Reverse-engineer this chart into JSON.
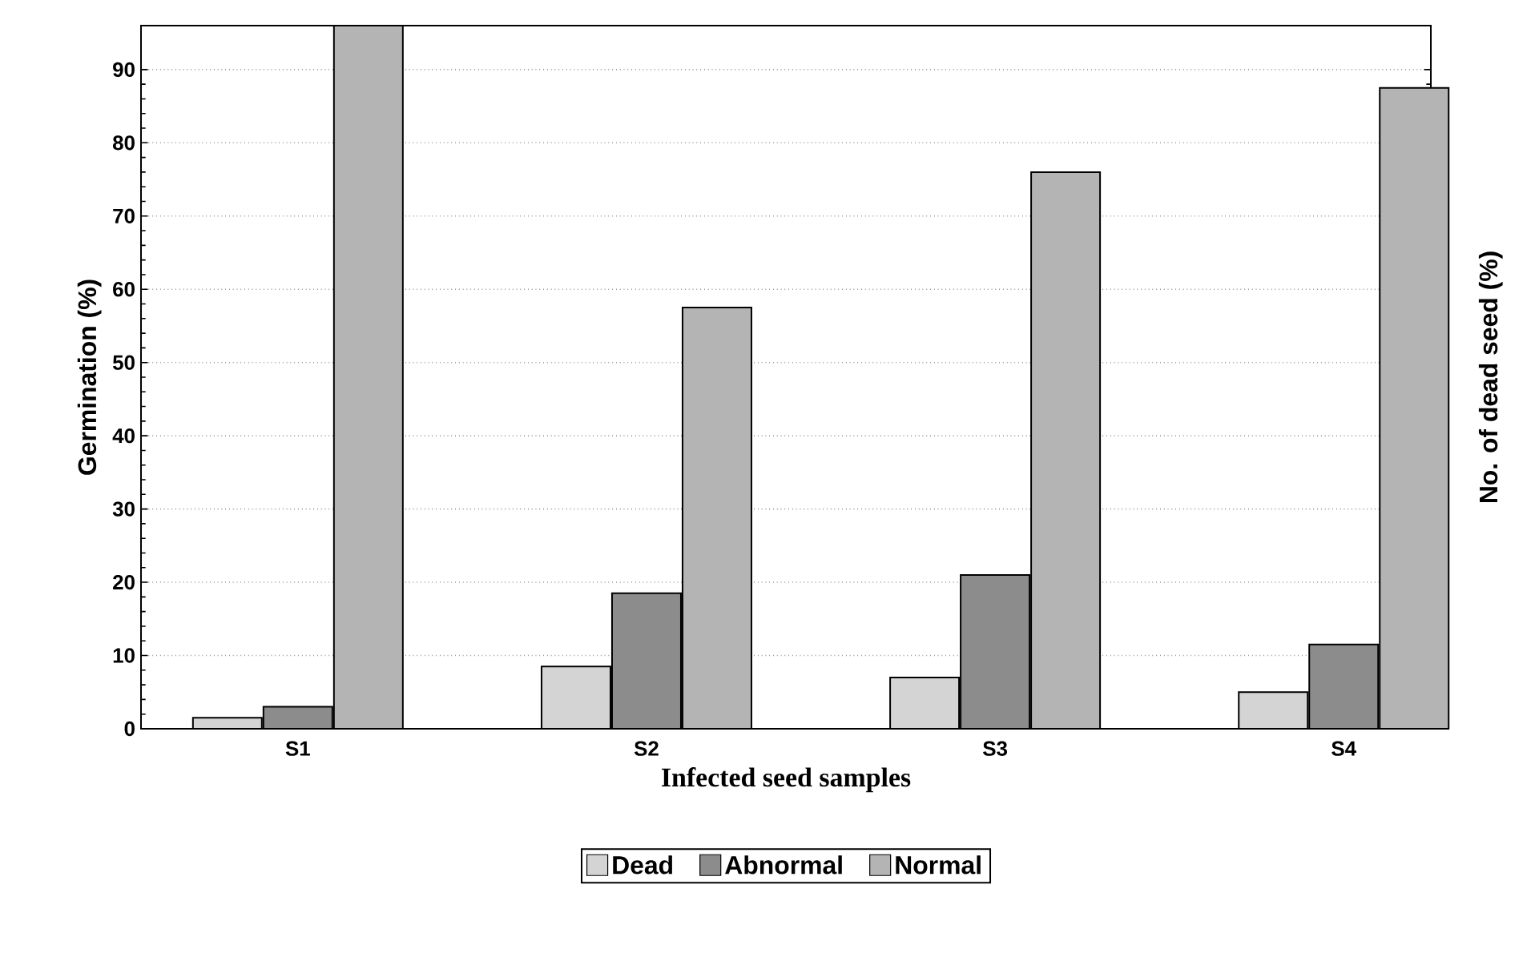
{
  "chart_data": {
    "type": "bar",
    "xlabel": "Infected seed samples",
    "ylabel": "Germination (%)",
    "y2label": "No. of dead seed (%)",
    "categories": [
      "S1",
      "S2",
      "S3",
      "S4"
    ],
    "series": [
      {
        "name": "Dead",
        "color": "#d4d4d4",
        "values": [
          1.5,
          8.5,
          7,
          5
        ]
      },
      {
        "name": "Abnormal",
        "color": "#8c8c8c",
        "values": [
          3,
          18.5,
          21,
          11.5
        ]
      },
      {
        "name": "Normal",
        "color": "#b4b4b4",
        "values": [
          96,
          57.5,
          76,
          87.5
        ]
      }
    ],
    "ylim": [
      0,
      96
    ],
    "yticks": [
      0,
      10,
      20,
      30,
      40,
      50,
      60,
      70,
      80,
      90
    ],
    "grid": "y",
    "legend": "bottom"
  }
}
